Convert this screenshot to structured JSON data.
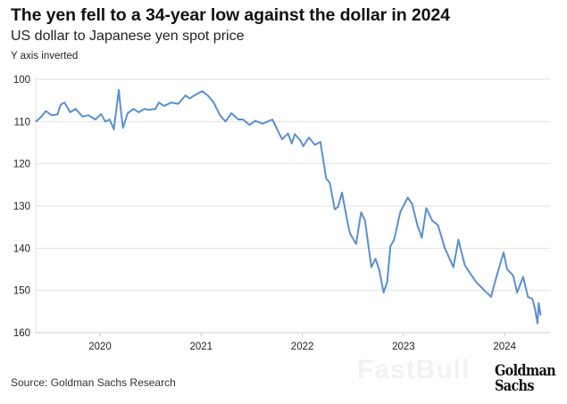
{
  "header": {
    "title": "The yen fell to a 34-year low against the dollar in 2024",
    "subtitle": "US dollar to Japanese yen spot price",
    "note": "Y axis inverted"
  },
  "footer": {
    "source": "Source: Goldman Sachs Research",
    "logo_line1": "Goldman",
    "logo_line2": "Sachs",
    "watermark": "FastBull"
  },
  "chart_data": {
    "type": "line",
    "title": "The yen fell to a 34-year low against the dollar in 2024",
    "subtitle": "US dollar to Japanese yen spot price",
    "ylabel": "",
    "xlabel": "",
    "y_inverted": true,
    "ylim": [
      100,
      160
    ],
    "yticks": [
      "100",
      "110",
      "120",
      "130",
      "140",
      "150",
      "160"
    ],
    "xticks": [
      "2020",
      "2021",
      "2022",
      "2023",
      "2024"
    ],
    "grid": "horizontal",
    "line_color": "#5b8fd0",
    "series": [
      {
        "points": [
          [
            "2019-05-15",
            110.0
          ],
          [
            "2019-06-01",
            109.0
          ],
          [
            "2019-06-20",
            107.5
          ],
          [
            "2019-07-10",
            108.5
          ],
          [
            "2019-08-01",
            108.3
          ],
          [
            "2019-08-12",
            106.0
          ],
          [
            "2019-08-26",
            105.5
          ],
          [
            "2019-09-15",
            107.8
          ],
          [
            "2019-10-05",
            107.0
          ],
          [
            "2019-10-30",
            108.8
          ],
          [
            "2019-11-20",
            108.5
          ],
          [
            "2019-12-15",
            109.5
          ],
          [
            "2020-01-05",
            108.2
          ],
          [
            "2020-01-20",
            110.0
          ],
          [
            "2020-02-05",
            109.5
          ],
          [
            "2020-02-20",
            111.8
          ],
          [
            "2020-03-09",
            102.5
          ],
          [
            "2020-03-15",
            106.5
          ],
          [
            "2020-03-24",
            111.5
          ],
          [
            "2020-04-10",
            108.0
          ],
          [
            "2020-05-01",
            107.0
          ],
          [
            "2020-05-20",
            107.8
          ],
          [
            "2020-06-10",
            107.0
          ],
          [
            "2020-06-25",
            107.2
          ],
          [
            "2020-07-20",
            107.0
          ],
          [
            "2020-08-01",
            105.5
          ],
          [
            "2020-08-20",
            106.3
          ],
          [
            "2020-09-15",
            105.5
          ],
          [
            "2020-10-10",
            105.8
          ],
          [
            "2020-11-05",
            103.8
          ],
          [
            "2020-11-20",
            104.5
          ],
          [
            "2020-12-15",
            103.5
          ],
          [
            "2021-01-05",
            102.8
          ],
          [
            "2021-01-25",
            103.8
          ],
          [
            "2021-02-15",
            105.5
          ],
          [
            "2021-03-10",
            108.5
          ],
          [
            "2021-03-30",
            110.0
          ],
          [
            "2021-04-20",
            108.0
          ],
          [
            "2021-05-15",
            109.5
          ],
          [
            "2021-06-01",
            109.5
          ],
          [
            "2021-06-25",
            110.8
          ],
          [
            "2021-07-15",
            109.8
          ],
          [
            "2021-08-10",
            110.5
          ],
          [
            "2021-09-15",
            109.5
          ],
          [
            "2021-09-30",
            111.5
          ],
          [
            "2021-10-20",
            114.2
          ],
          [
            "2021-11-10",
            112.8
          ],
          [
            "2021-11-24",
            115.2
          ],
          [
            "2021-12-05",
            113.0
          ],
          [
            "2021-12-25",
            114.5
          ],
          [
            "2022-01-04",
            115.8
          ],
          [
            "2022-01-25",
            113.8
          ],
          [
            "2022-02-15",
            115.5
          ],
          [
            "2022-03-07",
            114.8
          ],
          [
            "2022-03-28",
            123.5
          ],
          [
            "2022-04-10",
            124.5
          ],
          [
            "2022-04-28",
            130.8
          ],
          [
            "2022-05-10",
            130.2
          ],
          [
            "2022-05-24",
            126.8
          ],
          [
            "2022-06-15",
            134.5
          ],
          [
            "2022-06-22",
            136.5
          ],
          [
            "2022-07-14",
            139.0
          ],
          [
            "2022-08-01",
            131.5
          ],
          [
            "2022-08-15",
            133.5
          ],
          [
            "2022-09-07",
            144.5
          ],
          [
            "2022-09-22",
            142.5
          ],
          [
            "2022-10-05",
            145.0
          ],
          [
            "2022-10-21",
            150.5
          ],
          [
            "2022-11-03",
            148.0
          ],
          [
            "2022-11-15",
            139.5
          ],
          [
            "2022-11-28",
            138.0
          ],
          [
            "2022-12-20",
            131.5
          ],
          [
            "2023-01-16",
            128.0
          ],
          [
            "2023-02-01",
            129.5
          ],
          [
            "2023-02-20",
            134.5
          ],
          [
            "2023-03-08",
            137.5
          ],
          [
            "2023-03-24",
            130.5
          ],
          [
            "2023-04-15",
            133.5
          ],
          [
            "2023-05-05",
            134.5
          ],
          [
            "2023-05-30",
            140.0
          ],
          [
            "2023-06-30",
            144.5
          ],
          [
            "2023-07-18",
            138.0
          ],
          [
            "2023-08-10",
            144.0
          ],
          [
            "2023-08-30",
            146.0
          ],
          [
            "2023-09-20",
            148.0
          ],
          [
            "2023-10-20",
            150.0
          ],
          [
            "2023-11-13",
            151.5
          ],
          [
            "2023-11-25",
            148.5
          ],
          [
            "2023-12-10",
            145.0
          ],
          [
            "2023-12-28",
            141.0
          ],
          [
            "2024-01-10",
            145.0
          ],
          [
            "2024-02-01",
            146.5
          ],
          [
            "2024-02-15",
            150.5
          ],
          [
            "2024-03-08",
            146.8
          ],
          [
            "2024-03-25",
            151.5
          ],
          [
            "2024-04-10",
            152.0
          ],
          [
            "2024-04-20",
            154.5
          ],
          [
            "2024-04-29",
            157.8
          ],
          [
            "2024-05-03",
            153.0
          ],
          [
            "2024-05-10",
            155.8
          ]
        ]
      }
    ]
  }
}
